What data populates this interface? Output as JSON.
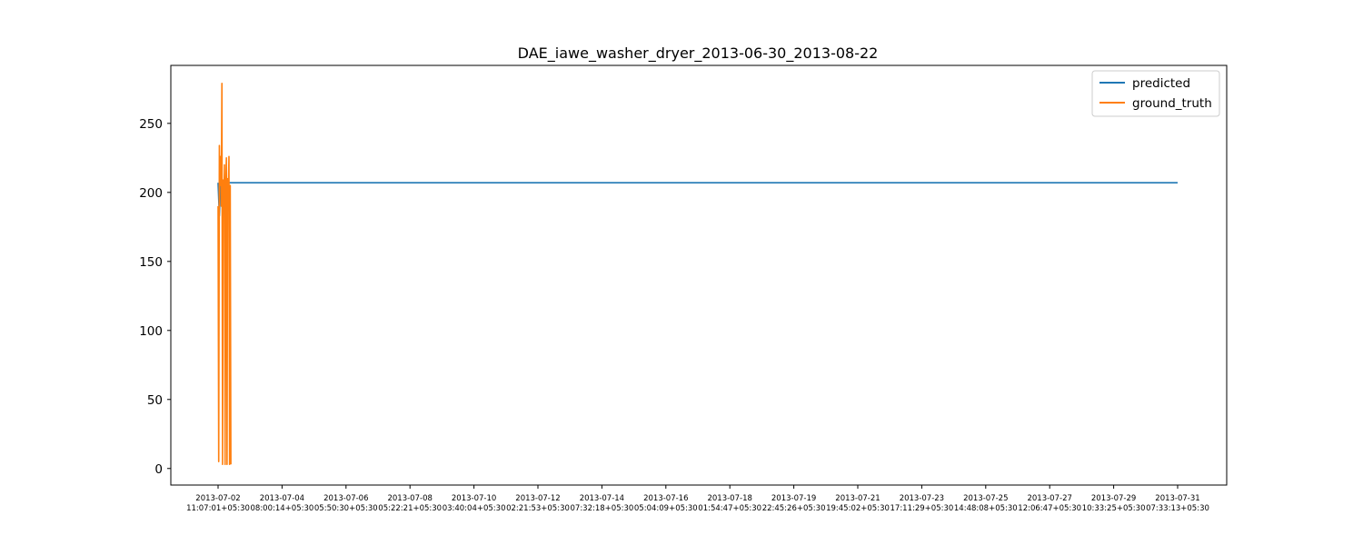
{
  "chart_data": {
    "type": "line",
    "title": "DAE_iawe_washer_dryer_2013-06-30_2013-08-22",
    "xlabel": "",
    "ylabel": "",
    "ylim": [
      -12,
      292
    ],
    "yticks": [
      0,
      50,
      100,
      150,
      200,
      250
    ],
    "grid": false,
    "legend": "top-right",
    "xticks": [
      {
        "line1": "2013-07-02",
        "line2": "11:07:01+05:30"
      },
      {
        "line1": "2013-07-04",
        "line2": "08:00:14+05:30"
      },
      {
        "line1": "2013-07-06",
        "line2": "05:50:30+05:30"
      },
      {
        "line1": "2013-07-08",
        "line2": "05:22:21+05:30"
      },
      {
        "line1": "2013-07-10",
        "line2": "03:40:04+05:30"
      },
      {
        "line1": "2013-07-12",
        "line2": "02:21:53+05:30"
      },
      {
        "line1": "2013-07-14",
        "line2": "07:32:18+05:30"
      },
      {
        "line1": "2013-07-16",
        "line2": "05:04:09+05:30"
      },
      {
        "line1": "2013-07-18",
        "line2": "01:54:47+05:30"
      },
      {
        "line1": "2013-07-19",
        "line2": "22:45:26+05:30"
      },
      {
        "line1": "2013-07-21",
        "line2": "19:45:02+05:30"
      },
      {
        "line1": "2013-07-23",
        "line2": "17:11:29+05:30"
      },
      {
        "line1": "2013-07-25",
        "line2": "14:48:08+05:30"
      },
      {
        "line1": "2013-07-27",
        "line2": "12:06:47+05:30"
      },
      {
        "line1": "2013-07-29",
        "line2": "10:33:25+05:30"
      },
      {
        "line1": "2013-07-31",
        "line2": "07:33:13+05:30"
      }
    ],
    "series": [
      {
        "name": "predicted",
        "color": "#1f77b4",
        "x": [
          0,
          0.02,
          0.04,
          0.06,
          0.1,
          15
        ],
        "y": [
          207,
          183,
          207,
          200,
          207,
          207
        ]
      },
      {
        "name": "ground_truth",
        "color": "#ff7f0e",
        "x": [
          0,
          0.01,
          0.02,
          0.03,
          0.04,
          0.05,
          0.06,
          0.07,
          0.08,
          0.09,
          0.1,
          0.11,
          0.12,
          0.13,
          0.14,
          0.15,
          0.16,
          0.17,
          0.18,
          0.19,
          0.2
        ],
        "y": [
          190,
          5,
          234,
          205,
          226,
          190,
          279,
          3,
          209,
          195,
          220,
          3,
          203,
          225,
          3,
          210,
          200,
          226,
          3,
          205,
          3
        ]
      }
    ]
  }
}
